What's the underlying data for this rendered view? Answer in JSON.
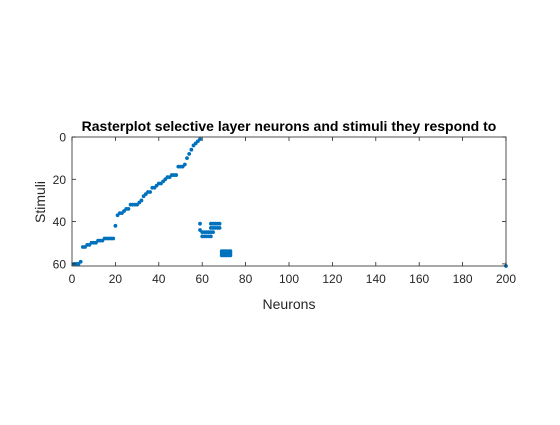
{
  "colors": {
    "points": "#0072BD",
    "axes": "#262626",
    "background": "#ffffff"
  },
  "chart_data": {
    "type": "scatter",
    "title": "Rasterplot selective layer neurons and stimuli they respond to",
    "xlabel": "Neurons",
    "ylabel": "Stimuli",
    "xlim": [
      0,
      200
    ],
    "ylim": [
      0,
      61
    ],
    "y_reversed": true,
    "grid": false,
    "xticks": [
      0,
      20,
      40,
      60,
      80,
      100,
      120,
      140,
      160,
      180,
      200
    ],
    "yticks": [
      0,
      20,
      40,
      60
    ],
    "series": [
      {
        "points": [
          [
            1,
            60
          ],
          [
            2,
            60
          ],
          [
            3,
            60
          ],
          [
            4,
            59
          ],
          [
            5,
            52
          ],
          [
            6,
            52
          ],
          [
            7,
            51
          ],
          [
            8,
            51
          ],
          [
            9,
            50
          ],
          [
            10,
            50
          ],
          [
            11,
            50
          ],
          [
            12,
            49
          ],
          [
            13,
            49
          ],
          [
            14,
            49
          ],
          [
            15,
            48
          ],
          [
            16,
            48
          ],
          [
            17,
            48
          ],
          [
            18,
            48
          ],
          [
            19,
            48
          ],
          [
            20,
            42
          ],
          [
            21,
            37
          ],
          [
            22,
            36
          ],
          [
            23,
            36
          ],
          [
            24,
            35
          ],
          [
            25,
            34
          ],
          [
            26,
            34
          ],
          [
            27,
            32
          ],
          [
            28,
            32
          ],
          [
            29,
            32
          ],
          [
            30,
            32
          ],
          [
            31,
            31
          ],
          [
            32,
            30
          ],
          [
            33,
            28
          ],
          [
            34,
            27
          ],
          [
            35,
            26
          ],
          [
            36,
            26
          ],
          [
            37,
            24
          ],
          [
            38,
            24
          ],
          [
            39,
            23
          ],
          [
            40,
            22
          ],
          [
            41,
            22
          ],
          [
            42,
            21
          ],
          [
            43,
            20
          ],
          [
            44,
            19
          ],
          [
            45,
            19
          ],
          [
            46,
            18
          ],
          [
            47,
            18
          ],
          [
            48,
            18
          ],
          [
            49,
            14
          ],
          [
            50,
            14
          ],
          [
            51,
            14
          ],
          [
            52,
            13
          ],
          [
            53,
            10
          ],
          [
            54,
            8
          ],
          [
            55,
            6
          ],
          [
            56,
            4
          ],
          [
            57,
            3
          ],
          [
            58,
            2
          ],
          [
            59,
            1
          ],
          [
            59,
            41
          ],
          [
            59,
            44
          ],
          [
            60,
            45
          ],
          [
            60,
            47
          ],
          [
            61,
            45
          ],
          [
            61,
            47
          ],
          [
            62,
            45
          ],
          [
            62,
            47
          ],
          [
            63,
            45
          ],
          [
            63,
            47
          ],
          [
            64,
            45
          ],
          [
            64,
            47
          ],
          [
            64,
            41
          ],
          [
            64,
            43
          ],
          [
            65,
            41
          ],
          [
            65,
            43
          ],
          [
            65,
            45
          ],
          [
            66,
            41
          ],
          [
            66,
            43
          ],
          [
            67,
            41
          ],
          [
            67,
            43
          ],
          [
            68,
            41
          ],
          [
            68,
            43
          ],
          [
            69,
            54
          ],
          [
            69,
            55
          ],
          [
            69,
            56
          ],
          [
            70,
            54
          ],
          [
            70,
            55
          ],
          [
            70,
            56
          ],
          [
            71,
            54
          ],
          [
            71,
            55
          ],
          [
            71,
            56
          ],
          [
            72,
            54
          ],
          [
            72,
            55
          ],
          [
            72,
            56
          ],
          [
            73,
            54
          ],
          [
            73,
            55
          ],
          [
            73,
            56
          ],
          [
            200,
            61
          ]
        ]
      }
    ]
  }
}
